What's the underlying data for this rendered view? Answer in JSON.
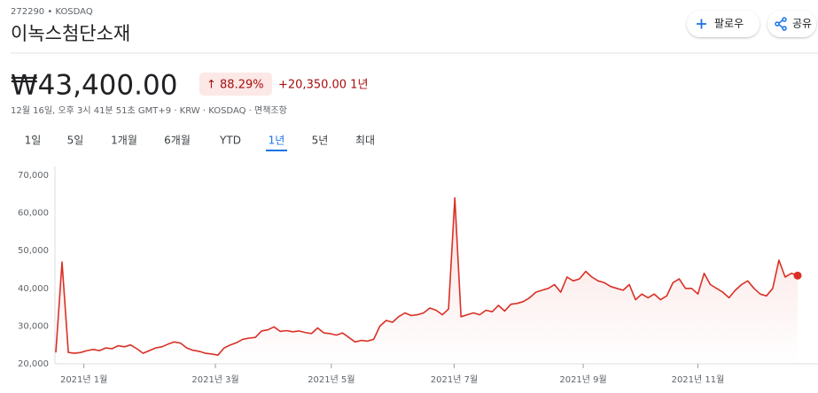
{
  "header": {
    "ticker": "272290 • KOSDAQ",
    "title": "이녹스첨단소재",
    "follow": "팔로우",
    "share": "공유"
  },
  "quote": {
    "price": "₩43,400.00",
    "change_pct": "↑ 88.29%",
    "change_abs": "+20,350.00 1년",
    "meta": "12월 16일, 오후 3시 41분 51초 GMT+9 · KRW · KOSDAQ · 면책조항"
  },
  "tabs": [
    "1일",
    "5일",
    "1개월",
    "6개월",
    "YTD",
    "1년",
    "5년",
    "최대"
  ],
  "selected_tab": 5,
  "chart_data": {
    "type": "line",
    "series": [
      {
        "color": "#d93025",
        "values": [
          23000,
          47000,
          23000,
          22800,
          23000,
          23500,
          23800,
          23500,
          24200,
          24000,
          24800,
          24500,
          25000,
          24000,
          22800,
          23500,
          24200,
          24500,
          25200,
          25800,
          25500,
          24200,
          23600,
          23300,
          22800,
          22600,
          22300,
          24200,
          25000,
          25600,
          26500,
          26800,
          27000,
          28700,
          29000,
          29800,
          28600,
          28800,
          28500,
          28700,
          28300,
          28000,
          29500,
          28200,
          28000,
          27600,
          28200,
          27000,
          25800,
          26200,
          26000,
          26500,
          30000,
          31500,
          31000,
          32500,
          33500,
          32800,
          33000,
          33500,
          34800,
          34200,
          33000,
          34500,
          64000,
          32500,
          33000,
          33500,
          33000,
          34200,
          33800,
          35500,
          34000,
          35800,
          36000,
          36500,
          37500,
          39000,
          39500,
          40000,
          41000,
          39000,
          43000,
          42000,
          42500,
          44500,
          43000,
          42000,
          41500,
          40500,
          40000,
          39500,
          41000,
          37000,
          38500,
          37500,
          38500,
          37000,
          38000,
          41500,
          42500,
          40000,
          40000,
          38500,
          44000,
          41000,
          40000,
          39000,
          37500,
          39500,
          41000,
          42000,
          40000,
          38500,
          38000,
          40000,
          47500,
          43000,
          44000,
          43400
        ]
      }
    ],
    "xlim": [
      0,
      119
    ],
    "xticks": [
      {
        "value": 4.5,
        "label": "2021년 1월"
      },
      {
        "value": 25.6,
        "label": "2021년 3월"
      },
      {
        "value": 44.2,
        "label": "2021년 5월"
      },
      {
        "value": 63.9,
        "label": "2021년 7월"
      },
      {
        "value": 84.6,
        "label": "2021년 9월"
      },
      {
        "value": 103,
        "label": "2021년 11월"
      }
    ],
    "ylim": [
      20000,
      70000
    ],
    "yticks": [
      {
        "value": 20000,
        "label": "20,000"
      },
      {
        "value": 30000,
        "label": "30,000"
      },
      {
        "value": 40000,
        "label": "40,000"
      },
      {
        "value": 50000,
        "label": "50,000"
      },
      {
        "value": 60000,
        "label": "60,000"
      },
      {
        "value": 70000,
        "label": "70,000"
      }
    ],
    "grid": false
  }
}
